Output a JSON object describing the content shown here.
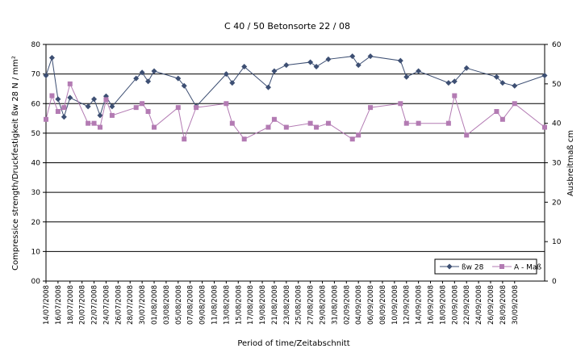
{
  "chart_data": {
    "type": "line",
    "title": "C 40 / 50   Betonsorte 22 / 08",
    "xlabel": "Period of time/Zeitabschnitt",
    "ylabel": "Compressice strength/Druckfestigkeit   ßw 28    N / mm²",
    "y2label": "Ausbreitmaß cm",
    "ylim": [
      0,
      80
    ],
    "y2lim": [
      0,
      60
    ],
    "yticks": [
      "00",
      "10",
      "20",
      "30",
      "40",
      "50",
      "60",
      "70",
      "80"
    ],
    "y2ticks": [
      "0",
      "10",
      "20",
      "30",
      "40",
      "50",
      "60"
    ],
    "grid": true,
    "legend_position": "bottom-right",
    "x_tick_labels": [
      "14/07/2008",
      "16/07/2008",
      "18/07/2008",
      "20/07/2008",
      "22/07/2008",
      "24/07/2008",
      "26/07/2008",
      "28/07/2008",
      "30/07/2008",
      "01/08/2008",
      "03/08/2008",
      "05/08/2008",
      "07/08/2008",
      "09/08/2008",
      "11/08/2008",
      "13/08/2008",
      "15/08/2008",
      "17/08/2008",
      "19/08/2008",
      "21/08/2008",
      "23/08/2008",
      "25/08/2008",
      "27/08/2008",
      "29/08/2008",
      "31/08/2008",
      "02/09/2008",
      "04/09/2008",
      "06/09/2008",
      "08/09/2008",
      "10/09/2008",
      "12/09/2008",
      "14/09/2008",
      "16/09/2008",
      "18/09/2008",
      "20/09/2008",
      "22/09/2008",
      "24/09/2008",
      "26/09/2008",
      "28/09/2008",
      "30/09/2008"
    ],
    "series": [
      {
        "name": "ßw 28",
        "axis": "left",
        "color": "#3d4f73",
        "marker": "diamond",
        "points": [
          [
            "2008-07-14",
            69.5
          ],
          [
            "2008-07-15",
            75.5
          ],
          [
            "2008-07-16",
            61.5
          ],
          [
            "2008-07-17",
            55.5
          ],
          [
            "2008-07-18",
            62.0
          ],
          [
            "2008-07-21",
            59.0
          ],
          [
            "2008-07-22",
            61.5
          ],
          [
            "2008-07-23",
            56.0
          ],
          [
            "2008-07-24",
            62.5
          ],
          [
            "2008-07-25",
            59.0
          ],
          [
            "2008-07-29",
            68.5
          ],
          [
            "2008-07-30",
            70.5
          ],
          [
            "2008-07-31",
            67.5
          ],
          [
            "2008-08-01",
            71.0
          ],
          [
            "2008-08-05",
            68.5
          ],
          [
            "2008-08-06",
            66.0
          ],
          [
            "2008-08-08",
            59.0
          ],
          [
            "2008-08-13",
            70.0
          ],
          [
            "2008-08-14",
            67.0
          ],
          [
            "2008-08-16",
            72.5
          ],
          [
            "2008-08-20",
            65.5
          ],
          [
            "2008-08-21",
            71.0
          ],
          [
            "2008-08-23",
            73.0
          ],
          [
            "2008-08-27",
            74.0
          ],
          [
            "2008-08-28",
            72.5
          ],
          [
            "2008-08-30",
            75.0
          ],
          [
            "2008-09-03",
            76.0
          ],
          [
            "2008-09-04",
            73.0
          ],
          [
            "2008-09-06",
            76.0
          ],
          [
            "2008-09-11",
            74.5
          ],
          [
            "2008-09-12",
            69.0
          ],
          [
            "2008-09-14",
            71.0
          ],
          [
            "2008-09-19",
            67.0
          ],
          [
            "2008-09-20",
            67.5
          ],
          [
            "2008-09-22",
            72.0
          ],
          [
            "2008-09-27",
            69.0
          ],
          [
            "2008-09-28",
            67.0
          ],
          [
            "2008-09-30",
            66.0
          ],
          [
            "2008-10-05",
            69.5
          ]
        ]
      },
      {
        "name": "A - Maß",
        "axis": "right",
        "color": "#b37bb3",
        "marker": "square",
        "points": [
          [
            "2008-07-14",
            41.0
          ],
          [
            "2008-07-15",
            47.0
          ],
          [
            "2008-07-16",
            43.0
          ],
          [
            "2008-07-17",
            44.0
          ],
          [
            "2008-07-18",
            50.0
          ],
          [
            "2008-07-21",
            40.0
          ],
          [
            "2008-07-22",
            40.0
          ],
          [
            "2008-07-23",
            39.0
          ],
          [
            "2008-07-24",
            46.0
          ],
          [
            "2008-07-25",
            42.0
          ],
          [
            "2008-07-29",
            44.0
          ],
          [
            "2008-07-30",
            45.0
          ],
          [
            "2008-07-31",
            43.0
          ],
          [
            "2008-08-01",
            39.0
          ],
          [
            "2008-08-05",
            44.0
          ],
          [
            "2008-08-06",
            36.0
          ],
          [
            "2008-08-08",
            44.0
          ],
          [
            "2008-08-13",
            45.0
          ],
          [
            "2008-08-14",
            40.0
          ],
          [
            "2008-08-16",
            36.0
          ],
          [
            "2008-08-20",
            39.0
          ],
          [
            "2008-08-21",
            41.0
          ],
          [
            "2008-08-23",
            39.0
          ],
          [
            "2008-08-27",
            40.0
          ],
          [
            "2008-08-28",
            39.0
          ],
          [
            "2008-08-30",
            40.0
          ],
          [
            "2008-09-03",
            36.0
          ],
          [
            "2008-09-04",
            37.0
          ],
          [
            "2008-09-06",
            44.0
          ],
          [
            "2008-09-11",
            45.0
          ],
          [
            "2008-09-12",
            40.0
          ],
          [
            "2008-09-14",
            40.0
          ],
          [
            "2008-09-19",
            40.0
          ],
          [
            "2008-09-20",
            47.0
          ],
          [
            "2008-09-22",
            37.0
          ],
          [
            "2008-09-27",
            43.0
          ],
          [
            "2008-09-28",
            41.0
          ],
          [
            "2008-09-30",
            45.0
          ],
          [
            "2008-10-05",
            39.0
          ]
        ]
      }
    ]
  }
}
